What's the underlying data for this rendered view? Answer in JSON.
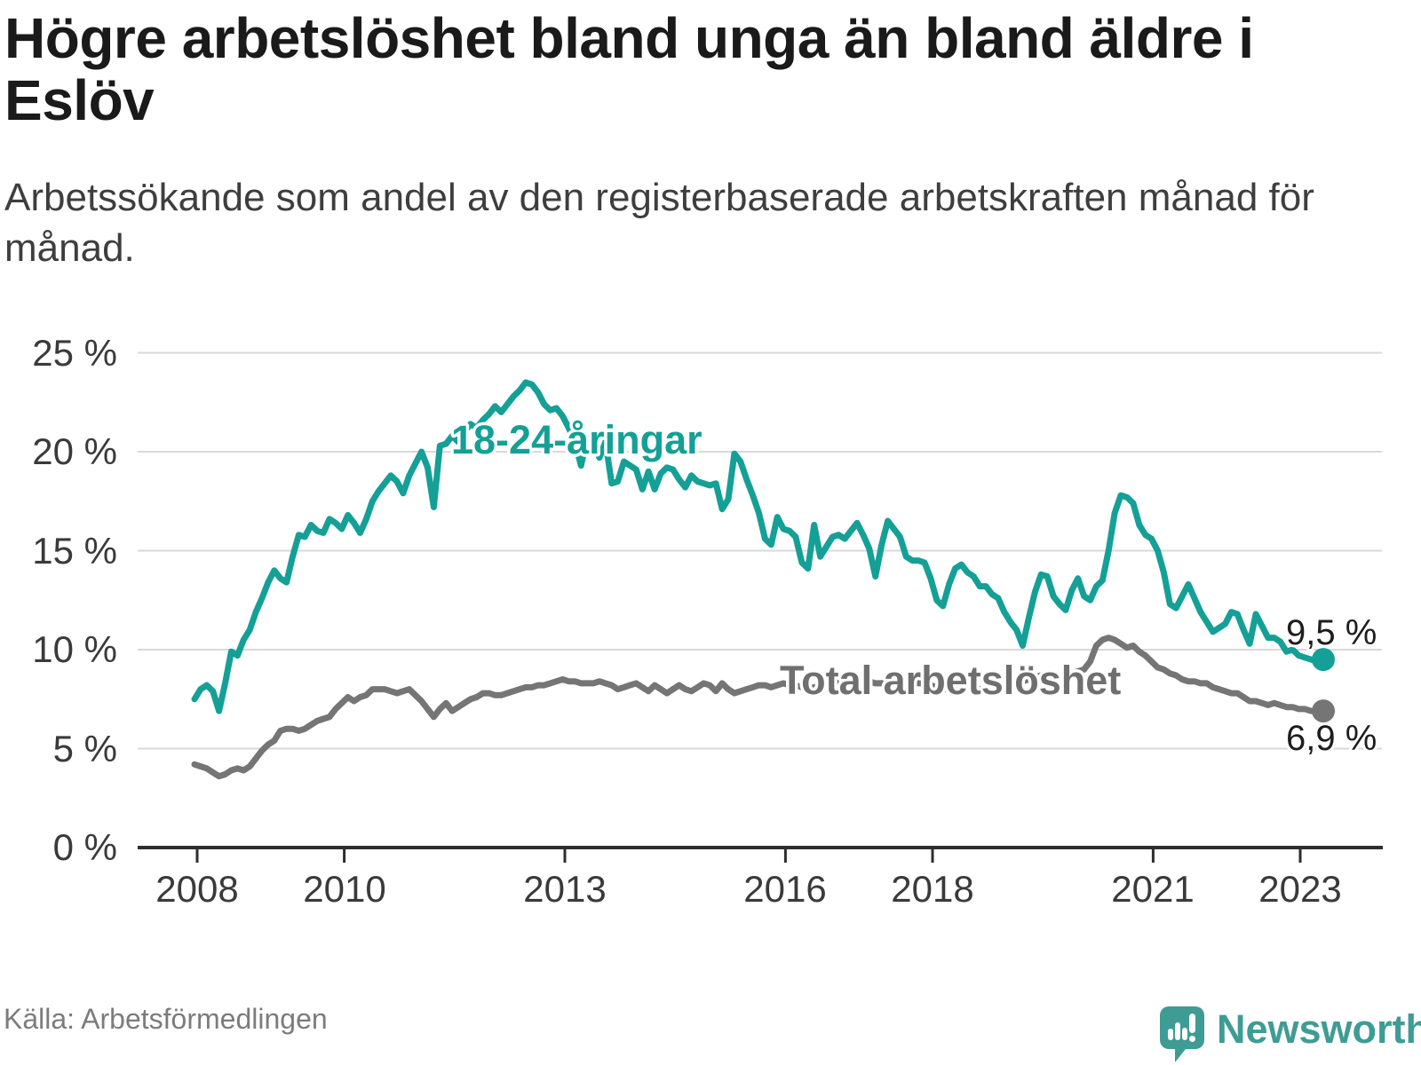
{
  "header": {
    "title": "Högre arbetslöshet bland unga än bland äldre i Eslöv",
    "title_line1": "Högre arbetslöshet bland unga än bland äldre i",
    "title_line2": "Eslöv",
    "subtitle": "Arbetssökande som andel av den registerbaserade arbetskraften månad för månad."
  },
  "footer": {
    "source": "Källa: Arbetsförmedlingen",
    "brand": "Newsworthy",
    "brand_color": "#3e9c94"
  },
  "chart_data": {
    "type": "line",
    "title": "Högre arbetslöshet bland unga än bland äldre i Eslöv",
    "subtitle": "Arbetssökande som andel av den registerbaserade arbetskraften månad för månad.",
    "unit": "%",
    "frequency": "monthly",
    "x_start_year": 2008,
    "ylim": [
      0,
      25
    ],
    "grid": "horizontal",
    "axis_color": "#2e2e2e",
    "gridline_color": "#d9d9d9",
    "yticks": [
      {
        "value": 25,
        "label": "25 %"
      },
      {
        "value": 20,
        "label": "20 %"
      },
      {
        "value": 15,
        "label": "15 %"
      },
      {
        "value": 10,
        "label": "10 %"
      },
      {
        "value": 5,
        "label": "5 %"
      },
      {
        "value": 0,
        "label": "0 %"
      }
    ],
    "xticks": [
      {
        "year": 2008,
        "label": "2008"
      },
      {
        "year": 2010,
        "label": "2010"
      },
      {
        "year": 2013,
        "label": "2013"
      },
      {
        "year": 2016,
        "label": "2016"
      },
      {
        "year": 2018,
        "label": "2018"
      },
      {
        "year": 2021,
        "label": "2021"
      },
      {
        "year": 2023,
        "label": "2023"
      }
    ],
    "series": [
      {
        "name": "18-24-åringar",
        "label_text": "18-24-åringar",
        "end_label": "9,5 %",
        "end_value": 9.5,
        "color": "#14a096",
        "values": [
          7.5,
          8.0,
          8.2,
          7.9,
          6.9,
          8.3,
          9.9,
          9.7,
          10.5,
          11.0,
          11.9,
          12.6,
          13.4,
          14.0,
          13.6,
          13.4,
          14.7,
          15.8,
          15.7,
          16.3,
          16.0,
          15.9,
          16.6,
          16.4,
          16.1,
          16.8,
          16.4,
          15.9,
          16.6,
          17.5,
          18.0,
          18.4,
          18.8,
          18.5,
          17.9,
          18.8,
          19.4,
          20.0,
          19.2,
          17.2,
          20.3,
          20.4,
          20.8,
          20.5,
          21.0,
          21.4,
          21.2,
          21.6,
          21.9,
          22.3,
          22.0,
          22.4,
          22.8,
          23.1,
          23.5,
          23.4,
          23.0,
          22.4,
          22.1,
          22.2,
          21.8,
          21.2,
          20.5,
          19.3,
          20.7,
          20.4,
          19.7,
          20.5,
          18.4,
          18.5,
          19.5,
          19.3,
          19.1,
          18.1,
          19.0,
          18.1,
          18.9,
          19.2,
          19.1,
          18.6,
          18.2,
          18.8,
          18.5,
          18.4,
          18.3,
          18.4,
          17.1,
          17.6,
          19.9,
          19.5,
          18.6,
          17.8,
          16.9,
          15.6,
          15.3,
          16.7,
          16.1,
          16.0,
          15.7,
          14.4,
          14.1,
          16.3,
          14.7,
          15.2,
          15.7,
          15.8,
          15.6,
          16.0,
          16.4,
          15.8,
          15.1,
          13.7,
          15.3,
          16.5,
          16.1,
          15.7,
          14.7,
          14.5,
          14.5,
          14.4,
          13.6,
          12.5,
          12.2,
          13.3,
          14.1,
          14.3,
          13.9,
          13.7,
          13.2,
          13.2,
          12.8,
          12.6,
          11.9,
          11.4,
          11.0,
          10.2,
          11.6,
          12.9,
          13.8,
          13.7,
          12.7,
          12.3,
          12.0,
          13.0,
          13.6,
          12.7,
          12.5,
          13.2,
          13.5,
          15.0,
          16.9,
          17.8,
          17.7,
          17.4,
          16.3,
          15.8,
          15.6,
          15.0,
          13.9,
          12.3,
          12.1,
          12.7,
          13.3,
          12.6,
          11.9,
          11.4,
          10.9,
          11.1,
          11.3,
          11.9,
          11.8,
          11.0,
          10.3,
          11.8,
          11.2,
          10.6,
          10.6,
          10.4,
          9.9,
          10.0,
          9.7,
          9.6,
          9.5,
          9.4,
          9.5
        ]
      },
      {
        "name": "Total arbetslöshet",
        "label_text": "Total arbetslöshet",
        "end_label": "6,9 %",
        "end_value": 6.9,
        "color": "#757575",
        "values": [
          4.2,
          4.1,
          4.0,
          3.8,
          3.6,
          3.7,
          3.9,
          4.0,
          3.9,
          4.1,
          4.5,
          4.9,
          5.2,
          5.4,
          5.9,
          6.0,
          6.0,
          5.9,
          6.0,
          6.2,
          6.4,
          6.5,
          6.6,
          7.0,
          7.3,
          7.6,
          7.4,
          7.6,
          7.7,
          8.0,
          8.0,
          8.0,
          7.9,
          7.8,
          7.9,
          8.0,
          7.7,
          7.4,
          7.0,
          6.6,
          7.0,
          7.3,
          6.9,
          7.1,
          7.3,
          7.5,
          7.6,
          7.8,
          7.8,
          7.7,
          7.7,
          7.8,
          7.9,
          8.0,
          8.1,
          8.1,
          8.2,
          8.2,
          8.3,
          8.4,
          8.5,
          8.4,
          8.4,
          8.3,
          8.3,
          8.3,
          8.4,
          8.3,
          8.2,
          8.0,
          8.1,
          8.2,
          8.3,
          8.1,
          7.9,
          8.2,
          8.0,
          7.8,
          8.0,
          8.2,
          8.0,
          7.9,
          8.1,
          8.3,
          8.2,
          7.9,
          8.3,
          8.0,
          7.8,
          7.9,
          8.0,
          8.1,
          8.2,
          8.2,
          8.1,
          8.2,
          8.3,
          8.2,
          8.2,
          8.1,
          8.0,
          8.1,
          8.2,
          8.3,
          8.3,
          8.4,
          8.4,
          8.5,
          8.5,
          8.4,
          8.4,
          8.3,
          8.3,
          8.4,
          8.5,
          8.5,
          8.4,
          8.4,
          8.3,
          8.3,
          8.2,
          8.1,
          8.0,
          8.0,
          7.9,
          8.0,
          8.1,
          8.1,
          8.0,
          8.0,
          8.1,
          8.2,
          8.2,
          8.3,
          8.3,
          8.4,
          8.5,
          8.6,
          8.7,
          8.7,
          8.6,
          8.6,
          8.7,
          8.8,
          8.9,
          9.0,
          9.4,
          10.2,
          10.5,
          10.6,
          10.5,
          10.3,
          10.1,
          10.2,
          9.9,
          9.7,
          9.4,
          9.1,
          9.0,
          8.8,
          8.7,
          8.5,
          8.4,
          8.4,
          8.3,
          8.3,
          8.1,
          8.0,
          7.9,
          7.8,
          7.8,
          7.6,
          7.4,
          7.4,
          7.3,
          7.2,
          7.3,
          7.2,
          7.1,
          7.1,
          7.0,
          7.0,
          6.9,
          6.9,
          6.9
        ]
      }
    ]
  }
}
